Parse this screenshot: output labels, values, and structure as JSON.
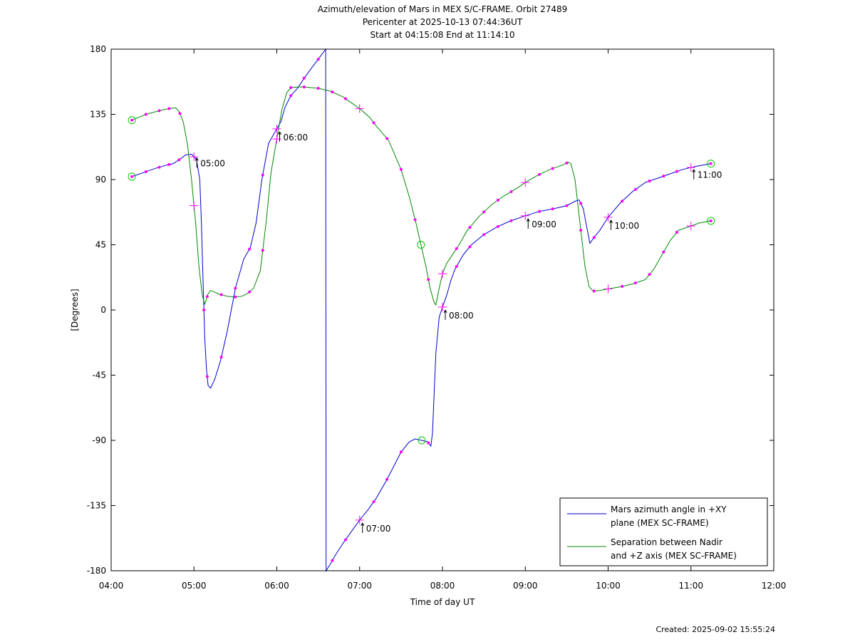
{
  "chart_data": {
    "type": "line",
    "title": [
      "Azimuth/elevation of Mars in MEX S/C-FRAME.  Orbit 27489",
      "Pericenter at 2025-10-13 07:44:36UT",
      "Start at 04:15:08 End at 11:14:10"
    ],
    "xlabel": "Time of day UT",
    "ylabel": "[Degrees]",
    "xlim": [
      4.0,
      12.0
    ],
    "ylim": [
      -180,
      180
    ],
    "x_ticks": [
      {
        "v": 4,
        "label": "04:00"
      },
      {
        "v": 5,
        "label": "05:00"
      },
      {
        "v": 6,
        "label": "06:00"
      },
      {
        "v": 7,
        "label": "07:00"
      },
      {
        "v": 8,
        "label": "08:00"
      },
      {
        "v": 9,
        "label": "09:00"
      },
      {
        "v": 10,
        "label": "10:00"
      },
      {
        "v": 11,
        "label": "11:00"
      },
      {
        "v": 12,
        "label": "12:00"
      }
    ],
    "y_ticks": [
      {
        "v": 180,
        "label": "180"
      },
      {
        "v": 135,
        "label": "135"
      },
      {
        "v": 90,
        "label": "90"
      },
      {
        "v": 45,
        "label": "45"
      },
      {
        "v": 0,
        "label": "0"
      },
      {
        "v": -45,
        "label": "-45"
      },
      {
        "v": -90,
        "label": "-90"
      },
      {
        "v": -135,
        "label": "-135"
      },
      {
        "v": -180,
        "label": "-180"
      }
    ],
    "grid": false,
    "legend_position": "bottom-right",
    "marker_color": "#ff00ff",
    "circle_color": "#00cc00",
    "series": [
      {
        "name": "Mars azimuth angle in +XY\nplane (MEX SC-FRAME)",
        "color": "#0000cc",
        "points": [
          [
            4.25,
            92
          ],
          [
            4.4,
            95
          ],
          [
            4.55,
            98
          ],
          [
            4.67,
            100
          ],
          [
            4.75,
            101
          ],
          [
            4.83,
            104
          ],
          [
            4.9,
            107
          ],
          [
            4.97,
            107.5
          ],
          [
            5.03,
            104
          ],
          [
            5.07,
            90
          ],
          [
            5.09,
            60
          ],
          [
            5.11,
            20
          ],
          [
            5.13,
            -20
          ],
          [
            5.15,
            -40
          ],
          [
            5.17,
            -52
          ],
          [
            5.2,
            -54
          ],
          [
            5.25,
            -48
          ],
          [
            5.32,
            -35
          ],
          [
            5.4,
            -15
          ],
          [
            5.5,
            15
          ],
          [
            5.6,
            35
          ],
          [
            5.68,
            43
          ],
          [
            5.75,
            60
          ],
          [
            5.82,
            90
          ],
          [
            5.9,
            115
          ],
          [
            6.0,
            125
          ],
          [
            6.05,
            130
          ],
          [
            6.1,
            140
          ],
          [
            6.17,
            148
          ],
          [
            6.25,
            153
          ],
          [
            6.33,
            160
          ],
          [
            6.42,
            167
          ],
          [
            6.5,
            173
          ],
          [
            6.59,
            180
          ],
          [
            6.595,
            -180
          ],
          [
            6.65,
            -175
          ],
          [
            6.72,
            -168
          ],
          [
            6.8,
            -161
          ],
          [
            6.9,
            -153
          ],
          [
            7.0,
            -145
          ],
          [
            7.1,
            -138
          ],
          [
            7.2,
            -130
          ],
          [
            7.32,
            -118
          ],
          [
            7.42,
            -107
          ],
          [
            7.5,
            -98
          ],
          [
            7.6,
            -91
          ],
          [
            7.67,
            -89
          ],
          [
            7.75,
            -90
          ],
          [
            7.82,
            -91
          ],
          [
            7.86,
            -94
          ],
          [
            7.88,
            -85
          ],
          [
            7.92,
            -30
          ],
          [
            7.96,
            -5
          ],
          [
            8.0,
            2
          ],
          [
            8.05,
            10
          ],
          [
            8.1,
            20
          ],
          [
            8.15,
            28
          ],
          [
            8.25,
            38
          ],
          [
            8.35,
            45
          ],
          [
            8.5,
            52
          ],
          [
            8.65,
            57
          ],
          [
            8.8,
            61
          ],
          [
            9.0,
            65
          ],
          [
            9.17,
            68
          ],
          [
            9.35,
            70
          ],
          [
            9.5,
            72
          ],
          [
            9.6,
            75
          ],
          [
            9.65,
            76
          ],
          [
            9.7,
            70
          ],
          [
            9.75,
            55
          ],
          [
            9.78,
            46
          ],
          [
            9.83,
            50
          ],
          [
            9.9,
            55
          ],
          [
            10.0,
            64
          ],
          [
            10.15,
            74
          ],
          [
            10.3,
            82
          ],
          [
            10.45,
            88
          ],
          [
            10.6,
            91
          ],
          [
            10.75,
            94
          ],
          [
            10.9,
            97
          ],
          [
            11.05,
            99
          ],
          [
            11.24,
            101
          ]
        ]
      },
      {
        "name": "Separation between Nadir\nand +Z axis (MEX SC-FRAME)",
        "color": "#008800",
        "points": [
          [
            4.25,
            131
          ],
          [
            4.42,
            135
          ],
          [
            4.58,
            137.5
          ],
          [
            4.7,
            139
          ],
          [
            4.78,
            139.5
          ],
          [
            4.82,
            137
          ],
          [
            4.87,
            130
          ],
          [
            4.92,
            115
          ],
          [
            4.97,
            90
          ],
          [
            5.02,
            60
          ],
          [
            5.06,
            30
          ],
          [
            5.1,
            10
          ],
          [
            5.13,
            4
          ],
          [
            5.17,
            11
          ],
          [
            5.2,
            13.5
          ],
          [
            5.3,
            11
          ],
          [
            5.4,
            9.5
          ],
          [
            5.5,
            9
          ],
          [
            5.58,
            9.5
          ],
          [
            5.65,
            11.5
          ],
          [
            5.72,
            15
          ],
          [
            5.8,
            27
          ],
          [
            5.87,
            60
          ],
          [
            5.93,
            95
          ],
          [
            6.0,
            118
          ],
          [
            6.06,
            138
          ],
          [
            6.12,
            150
          ],
          [
            6.17,
            153.5
          ],
          [
            6.3,
            154
          ],
          [
            6.5,
            153
          ],
          [
            6.65,
            151
          ],
          [
            6.8,
            147
          ],
          [
            6.9,
            143
          ],
          [
            7.0,
            139
          ],
          [
            7.12,
            133
          ],
          [
            7.2,
            127
          ],
          [
            7.35,
            117
          ],
          [
            7.5,
            97
          ],
          [
            7.6,
            78
          ],
          [
            7.68,
            60
          ],
          [
            7.74,
            45
          ],
          [
            7.8,
            30
          ],
          [
            7.85,
            15
          ],
          [
            7.9,
            5
          ],
          [
            7.92,
            3.5
          ],
          [
            7.96,
            15
          ],
          [
            8.0,
            25
          ],
          [
            8.05,
            32
          ],
          [
            8.12,
            38
          ],
          [
            8.2,
            45
          ],
          [
            8.3,
            55
          ],
          [
            8.45,
            65
          ],
          [
            8.6,
            73
          ],
          [
            8.75,
            79
          ],
          [
            8.9,
            84
          ],
          [
            9.0,
            88
          ],
          [
            9.15,
            93
          ],
          [
            9.3,
            97
          ],
          [
            9.45,
            100
          ],
          [
            9.52,
            102
          ],
          [
            9.55,
            101
          ],
          [
            9.6,
            90
          ],
          [
            9.66,
            60
          ],
          [
            9.72,
            30
          ],
          [
            9.77,
            16
          ],
          [
            9.82,
            13
          ],
          [
            9.9,
            13.5
          ],
          [
            10.0,
            14.5
          ],
          [
            10.15,
            16
          ],
          [
            10.3,
            18
          ],
          [
            10.45,
            21
          ],
          [
            10.55,
            28
          ],
          [
            10.65,
            38
          ],
          [
            10.75,
            48
          ],
          [
            10.85,
            55
          ],
          [
            11.0,
            58
          ],
          [
            11.1,
            60
          ],
          [
            11.24,
            61.5
          ]
        ]
      }
    ],
    "markers": [
      {
        "series": 0,
        "x": [
          4.25,
          4.42,
          4.58,
          4.7,
          4.82,
          5.12,
          5.16,
          5.33,
          5.5,
          5.67,
          5.83,
          6.17,
          6.33,
          6.5,
          6.67,
          6.83,
          7.17,
          7.33,
          7.5,
          7.83,
          8.17,
          8.33,
          8.5,
          8.67,
          8.83,
          9.17,
          9.33,
          9.5,
          9.67,
          9.83,
          10.17,
          10.33,
          10.5,
          10.67,
          10.83,
          11.24
        ]
      },
      {
        "series": 1,
        "x": [
          4.25,
          4.42,
          4.58,
          4.7,
          4.83,
          5.16,
          5.33,
          5.5,
          5.67,
          5.83,
          6.17,
          6.33,
          6.5,
          6.67,
          6.83,
          7.17,
          7.33,
          7.5,
          7.67,
          7.83,
          8.17,
          8.33,
          8.5,
          8.67,
          8.83,
          9.17,
          9.33,
          9.5,
          9.67,
          9.83,
          10.17,
          10.33,
          10.5,
          10.67,
          10.83,
          11.24
        ]
      }
    ],
    "plus_markers": [
      {
        "series": 0,
        "x": [
          5.0,
          6.0,
          7.0,
          8.0,
          9.0,
          10.0,
          11.0
        ]
      },
      {
        "series": 1,
        "x": [
          5.0,
          6.0,
          7.0,
          8.0,
          9.0,
          10.0,
          11.0
        ]
      }
    ],
    "circle_markers": [
      {
        "series": 0,
        "x": [
          4.25,
          7.75,
          11.24
        ]
      },
      {
        "series": 1,
        "x": [
          4.25,
          7.74,
          11.24
        ]
      }
    ],
    "time_labels": [
      {
        "x": 5.0,
        "y": 107,
        "label": "05:00"
      },
      {
        "x": 6.0,
        "y": 125,
        "label": "06:00"
      },
      {
        "x": 7.0,
        "y": -145,
        "label": "07:00"
      },
      {
        "x": 8.0,
        "y": 2,
        "label": "08:00"
      },
      {
        "x": 9.0,
        "y": 65,
        "label": "09:00"
      },
      {
        "x": 10.0,
        "y": 64,
        "label": "10:00"
      },
      {
        "x": 11.0,
        "y": 99,
        "label": "11:00"
      }
    ]
  },
  "footer": {
    "created": "Created: 2025-09-02 15:55:24"
  }
}
